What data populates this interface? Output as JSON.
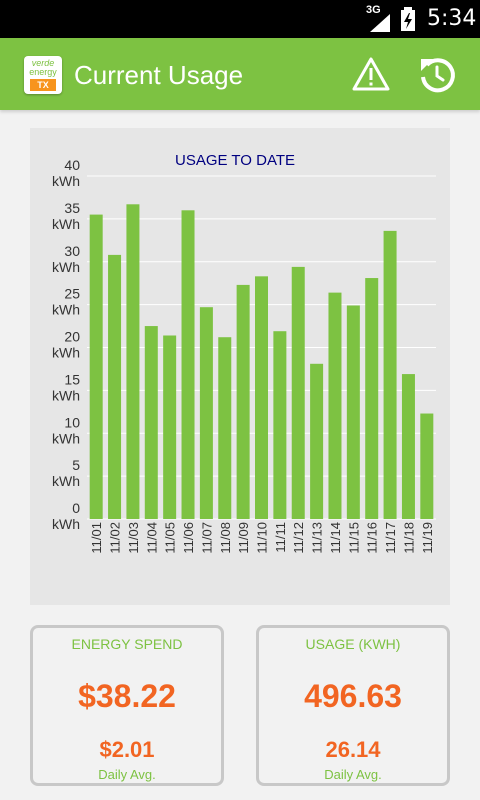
{
  "status_bar": {
    "network": "3G",
    "time": "5:34"
  },
  "app_bar": {
    "title": "Current Usage",
    "logo_lines": [
      "verde",
      "energy",
      "TX"
    ]
  },
  "icons": {
    "alert": "warning-triangle-icon",
    "refresh": "refresh-icon"
  },
  "colors": {
    "primary_green": "#7dc242",
    "accent_orange": "#f26522",
    "chart_title_blue": "#000080"
  },
  "chart_data": {
    "type": "bar",
    "title": "USAGE TO DATE",
    "categories": [
      "11/01",
      "11/02",
      "11/03",
      "11/04",
      "11/05",
      "11/06",
      "11/07",
      "11/08",
      "11/09",
      "11/10",
      "11/11",
      "11/12",
      "11/13",
      "11/14",
      "11/15",
      "11/16",
      "11/17",
      "11/18",
      "11/19"
    ],
    "values": [
      35.5,
      30.8,
      36.7,
      22.5,
      21.4,
      36.0,
      24.7,
      21.2,
      27.3,
      28.3,
      21.9,
      29.4,
      18.1,
      26.4,
      24.9,
      28.1,
      33.6,
      16.9,
      12.3
    ],
    "ylim": [
      0,
      40
    ],
    "yticks": [
      {
        "value": 0,
        "label": "0"
      },
      {
        "value": 5,
        "label": "5"
      },
      {
        "value": 10,
        "label": "10"
      },
      {
        "value": 15,
        "label": "15"
      },
      {
        "value": 20,
        "label": "20"
      },
      {
        "value": 25,
        "label": "25"
      },
      {
        "value": 30,
        "label": "30"
      },
      {
        "value": 35,
        "label": "35"
      },
      {
        "value": 40,
        "label": "40"
      }
    ],
    "yunit": "kWh",
    "grid": true,
    "bar_color": "#7dc242"
  },
  "energy_spend": {
    "label": "ENERGY SPEND",
    "total": "$38.22",
    "daily": "$2.01",
    "daily_label": "Daily Avg."
  },
  "usage": {
    "label": "USAGE (KWH)",
    "total": "496.63",
    "daily": "26.14",
    "daily_label": "Daily Avg."
  }
}
